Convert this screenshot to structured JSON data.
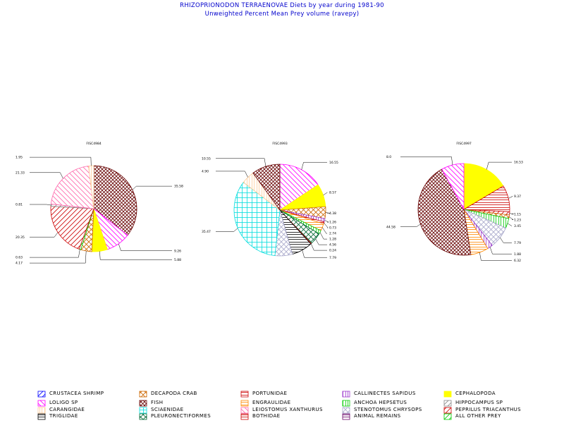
{
  "title": "RHIZOPRIONODON TERRAENOVAE Diets by year during 1981-90",
  "subtitle": "Unweighted Percent Mean Prey volume (ravepy)",
  "legend": [
    {
      "label": "CRUSTACEA SHRIMP",
      "color": "#0000ff",
      "pattern": "diag-up"
    },
    {
      "label": "LOLIGO SP",
      "color": "#ff00ff",
      "pattern": "diag-down"
    },
    {
      "label": "CARANGIDAE",
      "color": "#ffcc99",
      "pattern": "vert"
    },
    {
      "label": "TRIGLIDAE",
      "color": "#000000",
      "pattern": "horiz"
    },
    {
      "label": "DECAPODA CRAB",
      "color": "#cc6600",
      "pattern": "cross-diag"
    },
    {
      "label": "FISH",
      "color": "#660000",
      "pattern": "cross-diag-dense"
    },
    {
      "label": "SCIAENIDAE",
      "color": "#00dddd",
      "pattern": "grid"
    },
    {
      "label": "PLEURONECTIFORMES",
      "color": "#006633",
      "pattern": "cross-diag"
    },
    {
      "label": "PORTUNIDAE",
      "color": "#cc0000",
      "pattern": "horiz"
    },
    {
      "label": "ENGRAULIDAE",
      "color": "#ff8800",
      "pattern": "horiz"
    },
    {
      "label": "LEIOSTOMUS XANTHURUS",
      "color": "#ff66aa",
      "pattern": "diag-down"
    },
    {
      "label": "BOTHIDAE",
      "color": "#cc0000",
      "pattern": "horiz"
    },
    {
      "label": "CALLINECTES SAPIDUS",
      "color": "#9933cc",
      "pattern": "vert"
    },
    {
      "label": "ANCHOA HEPSETUS",
      "color": "#00cc00",
      "pattern": "vert"
    },
    {
      "label": "STENOTOMUS CHRYSOPS",
      "color": "#aaaacc",
      "pattern": "cross-diag"
    },
    {
      "label": "ANIMAL REMAINS",
      "color": "#660066",
      "pattern": "horiz"
    },
    {
      "label": "CEPHALOPODA",
      "color": "#ffff00",
      "pattern": "solid"
    },
    {
      "label": "HIPPOCAMPUS SP",
      "color": "#888888",
      "pattern": "diag-up"
    },
    {
      "label": "PEPRILUS TRIACANTHUS",
      "color": "#cc0000",
      "pattern": "diag-up"
    },
    {
      "label": "ALL OTHER PREY",
      "color": "#00cc00",
      "pattern": "diag-up"
    }
  ],
  "chart_data": [
    {
      "type": "pie",
      "title": "FISC4984",
      "slices": [
        {
          "category": "FISH",
          "value": 35.58,
          "label": "35.58"
        },
        {
          "category": "LOLIGO SP",
          "value": 9.26,
          "label": "9.26"
        },
        {
          "category": "CEPHALOPODA",
          "value": 5.88,
          "label": "5.88"
        },
        {
          "category": "DECAPODA CRAB",
          "value": 4.17,
          "label": "4.17"
        },
        {
          "category": "ALL OTHER PREY",
          "value": 0.63,
          "label": "0.63"
        },
        {
          "category": "PEPRILUS TRIACANTHUS",
          "value": 20.35,
          "label": "20.35"
        },
        {
          "category": "HIPPOCAMPUS SP",
          "value": 0.81,
          "label": "0.81"
        },
        {
          "category": "LEIOSTOMUS XANTHURUS",
          "value": 21.33,
          "label": "21.33"
        },
        {
          "category": "CARANGIDAE",
          "value": 1.95,
          "label": "1.95"
        }
      ]
    },
    {
      "type": "pie",
      "title": "FISC4993",
      "slices": [
        {
          "category": "LOLIGO SP",
          "value": 16.55,
          "label": "16.55"
        },
        {
          "category": "CEPHALOPODA",
          "value": 8.57,
          "label": "8.57"
        },
        {
          "category": "DECAPODA CRAB",
          "value": 4.38,
          "label": "4.38"
        },
        {
          "category": "CALLINECTES SAPIDUS",
          "value": 1.26,
          "label": "1.26"
        },
        {
          "category": "PORTUNIDAE",
          "value": 0.73,
          "label": "0.73"
        },
        {
          "category": "ENGRAULIDAE",
          "value": 2.74,
          "label": "2.74"
        },
        {
          "category": "ANCHOA HEPSETUS",
          "value": 1.28,
          "label": "1.28"
        },
        {
          "category": "PLEURONECTIFORMES",
          "value": 4.56,
          "label": "4.56"
        },
        {
          "category": "BOTHIDAE",
          "value": 0.24,
          "label": "0.24"
        },
        {
          "category": "TRIGLIDAE",
          "value": 7.79,
          "label": "7.79"
        },
        {
          "category": "STENOTOMUS CHRYSOPS",
          "value": 6.5,
          "label": ""
        },
        {
          "category": "SCIAENIDAE",
          "value": 35.47,
          "label": "35.47"
        },
        {
          "category": "CARANGIDAE",
          "value": 4.9,
          "label": "4.90"
        },
        {
          "category": "FISH",
          "value": 10.55,
          "label": "10.55"
        }
      ]
    },
    {
      "type": "pie",
      "title": "FISC4997",
      "slices": [
        {
          "category": "CEPHALOPODA",
          "value": 16.53,
          "label": "16.53"
        },
        {
          "category": "PORTUNIDAE",
          "value": 9.37,
          "label": "9.37"
        },
        {
          "category": "PEPRILUS TRIACANTHUS",
          "value": 1.15,
          "label": "1.15"
        },
        {
          "category": "DECAPODA CRAB",
          "value": 1.23,
          "label": "1.23"
        },
        {
          "category": "ANCHOA HEPSETUS",
          "value": 3.45,
          "label": "3.45"
        },
        {
          "category": "STENOTOMUS CHRYSOPS",
          "value": 7.79,
          "label": "7.79"
        },
        {
          "category": "CALLINECTES SAPIDUS",
          "value": 1.88,
          "label": "1.88"
        },
        {
          "category": "ENGRAULIDAE",
          "value": 6.32,
          "label": "6.32"
        },
        {
          "category": "FISH",
          "value": 44.58,
          "label": "44.58"
        },
        {
          "category": "LOLIGO SP",
          "value": 8.0,
          "label": "8.0"
        }
      ]
    }
  ]
}
